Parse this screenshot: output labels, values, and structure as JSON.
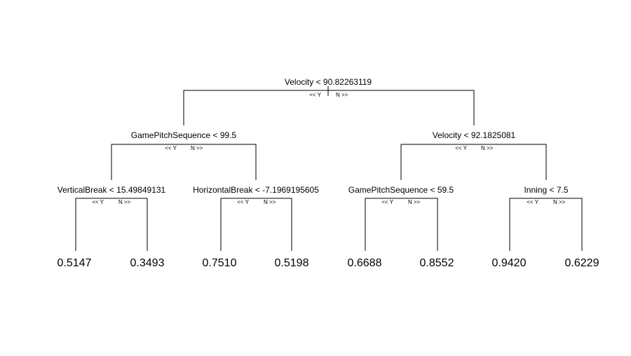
{
  "tree": {
    "root": {
      "split": "Velocity < 90.82263119",
      "yes": "<< Y",
      "no": "N >>"
    },
    "left": {
      "split": "GamePitchSequence < 99.5",
      "yes": "<< Y",
      "no": "N >>"
    },
    "right": {
      "split": "Velocity < 92.1825081",
      "yes": "<< Y",
      "no": "N >>"
    },
    "left_left": {
      "split": "VerticalBreak < 15.49849131",
      "yes": "<< Y",
      "no": "N >>"
    },
    "left_right": {
      "split": "HorizontalBreak < -7.1969195605",
      "yes": "<< Y",
      "no": "N >>"
    },
    "right_left": {
      "split": "GamePitchSequence < 59.5",
      "yes": "<< Y",
      "no": "N >>"
    },
    "right_right": {
      "split": "Inning < 7.5",
      "yes": "<< Y",
      "no": "N >>"
    },
    "leaves": [
      "0.5147",
      "0.3493",
      "0.7510",
      "0.5198",
      "0.6688",
      "0.8552",
      "0.9420",
      "0.6229"
    ]
  }
}
